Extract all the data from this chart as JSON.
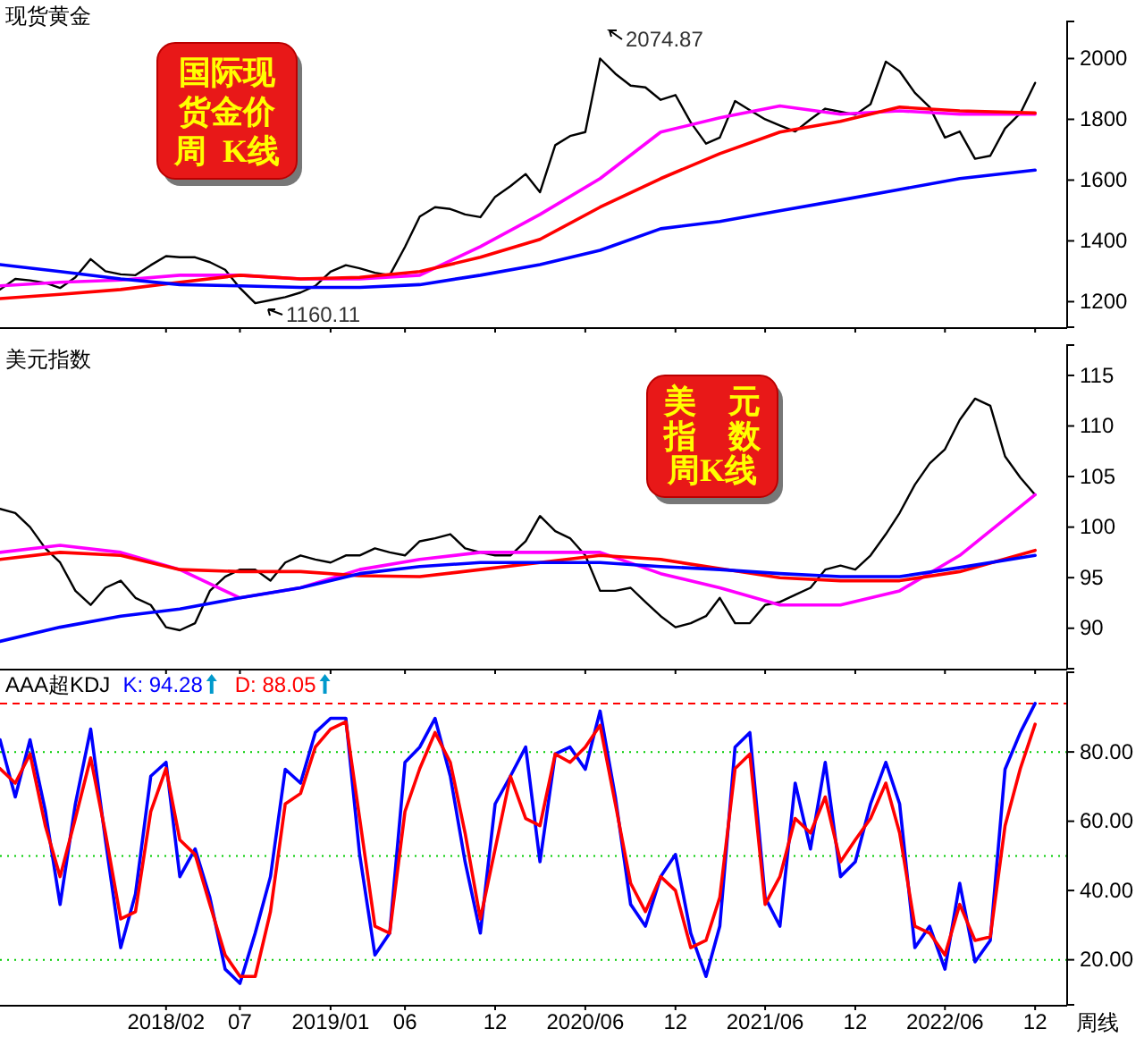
{
  "chart_data": [
    {
      "type": "line",
      "title": "现货黄金",
      "x": [
        "2017-03",
        "2017-04",
        "2017-05",
        "2017-06",
        "2017-07",
        "2017-08",
        "2017-09",
        "2017-10",
        "2017-11",
        "2017-12",
        "2018-01",
        "2018-02",
        "2018-03",
        "2018-04",
        "2018-05",
        "2018-06",
        "2018-07",
        "2018-08",
        "2018-09",
        "2018-10",
        "2018-11",
        "2018-12",
        "2019-01",
        "2019-02",
        "2019-03",
        "2019-04",
        "2019-05",
        "2019-06",
        "2019-07",
        "2019-08",
        "2019-09",
        "2019-10",
        "2019-11",
        "2019-12",
        "2020-01",
        "2020-02",
        "2020-03",
        "2020-04",
        "2020-05",
        "2020-06",
        "2020-07",
        "2020-08",
        "2020-09",
        "2020-10",
        "2020-11",
        "2020-12",
        "2021-01",
        "2021-02",
        "2021-03",
        "2021-04",
        "2021-05",
        "2021-06",
        "2021-07",
        "2021-08",
        "2021-09",
        "2021-10",
        "2021-11",
        "2021-12",
        "2022-01",
        "2022-02",
        "2022-03",
        "2022-04",
        "2022-05",
        "2022-06",
        "2022-07",
        "2022-08",
        "2022-09",
        "2022-10",
        "2022-11",
        "2022-12"
      ],
      "series": [
        {
          "color": "#000000",
          "values": [
            1240,
            1275,
            1270,
            1262,
            1245,
            1280,
            1340,
            1300,
            1290,
            1287,
            1320,
            1350,
            1346,
            1346,
            1330,
            1305,
            1245,
            1195,
            1205,
            1215,
            1230,
            1252,
            1299,
            1320,
            1310,
            1295,
            1287,
            1380,
            1480,
            1511,
            1505,
            1487,
            1478,
            1545,
            1580,
            1620,
            1560,
            1715,
            1745,
            1758,
            2000,
            1950,
            1911,
            1905,
            1864,
            1880,
            1790,
            1720,
            1740,
            1860,
            1830,
            1800,
            1780,
            1760,
            1800,
            1835,
            1825,
            1815,
            1850,
            1990,
            1958,
            1887,
            1840,
            1740,
            1760,
            1670,
            1680,
            1770,
            1820,
            1920
          ]
        },
        {
          "color": "#ff00ff",
          "x": [
            "2017-03",
            "2017-07",
            "2017-11",
            "2018-03",
            "2018-07",
            "2018-11",
            "2019-03",
            "2019-07",
            "2019-11",
            "2020-03",
            "2020-07",
            "2020-11",
            "2021-03",
            "2021-07",
            "2021-11",
            "2022-03",
            "2022-07",
            "2022-12"
          ],
          "values": [
            1252,
            1264,
            1271,
            1287,
            1287,
            1275,
            1275,
            1287,
            1381,
            1487,
            1605,
            1758,
            1805,
            1844,
            1817,
            1828,
            1817,
            1817
          ]
        },
        {
          "color": "#ff0000",
          "x": [
            "2017-03",
            "2017-07",
            "2017-11",
            "2018-03",
            "2018-07",
            "2018-11",
            "2019-03",
            "2019-07",
            "2019-11",
            "2020-03",
            "2020-07",
            "2020-11",
            "2021-03",
            "2021-07",
            "2021-11",
            "2022-03",
            "2022-07",
            "2022-12"
          ],
          "values": [
            1210,
            1224,
            1240,
            1264,
            1287,
            1275,
            1280,
            1299,
            1346,
            1405,
            1511,
            1605,
            1687,
            1758,
            1793,
            1840,
            1828,
            1821
          ]
        },
        {
          "color": "#0000ff",
          "x": [
            "2017-03",
            "2017-07",
            "2017-11",
            "2018-03",
            "2018-07",
            "2018-11",
            "2019-03",
            "2019-07",
            "2019-11",
            "2020-03",
            "2020-07",
            "2020-11",
            "2021-03",
            "2021-07",
            "2021-11",
            "2022-03",
            "2022-07",
            "2022-12"
          ],
          "values": [
            1322,
            1299,
            1275,
            1256,
            1252,
            1247,
            1247,
            1256,
            1287,
            1322,
            1369,
            1440,
            1464,
            1499,
            1534,
            1569,
            1605,
            1633
          ]
        }
      ],
      "xlim": [
        "2017-03-01",
        "2023-02-04"
      ],
      "xticks": [
        {
          "value": "2018-02",
          "label": null
        },
        {
          "value": "2018-07",
          "label": null
        },
        {
          "value": "2019-01",
          "label": null
        },
        {
          "value": "2019-06",
          "label": null
        },
        {
          "value": "2019-12",
          "label": null
        },
        {
          "value": "2020-06",
          "label": null
        },
        {
          "value": "2020-12",
          "label": null
        },
        {
          "value": "2021-06",
          "label": null
        },
        {
          "value": "2021-12",
          "label": null
        },
        {
          "value": "2022-06",
          "label": null
        },
        {
          "value": "2022-12",
          "label": null
        }
      ],
      "ylim": [
        1116,
        2122
      ],
      "yticks": [
        1200,
        1400,
        1600,
        1800,
        2000
      ],
      "tick_labels": "y",
      "annotations": [
        "国际现",
        "货金价",
        "周  K线",
        "2074.87",
        "1160.11"
      ]
    },
    {
      "type": "line",
      "title": "美元指数",
      "x": [
        "2017-03",
        "2017-04",
        "2017-05",
        "2017-06",
        "2017-07",
        "2017-08",
        "2017-09",
        "2017-10",
        "2017-11",
        "2017-12",
        "2018-01",
        "2018-02",
        "2018-03",
        "2018-04",
        "2018-05",
        "2018-06",
        "2018-07",
        "2018-08",
        "2018-09",
        "2018-10",
        "2018-11",
        "2018-12",
        "2019-01",
        "2019-02",
        "2019-03",
        "2019-04",
        "2019-05",
        "2019-06",
        "2019-07",
        "2019-08",
        "2019-09",
        "2019-10",
        "2019-11",
        "2019-12",
        "2020-01",
        "2020-02",
        "2020-03",
        "2020-04",
        "2020-05",
        "2020-06",
        "2020-07",
        "2020-08",
        "2020-09",
        "2020-10",
        "2020-11",
        "2020-12",
        "2021-01",
        "2021-02",
        "2021-03",
        "2021-04",
        "2021-05",
        "2021-06",
        "2021-07",
        "2021-08",
        "2021-09",
        "2021-10",
        "2021-11",
        "2021-12",
        "2022-01",
        "2022-02",
        "2022-03",
        "2022-04",
        "2022-05",
        "2022-06",
        "2022-07",
        "2022-08",
        "2022-09",
        "2022-10",
        "2022-11",
        "2022-12"
      ],
      "series": [
        {
          "color": "#000000",
          "values": [
            101.8,
            101.4,
            100,
            97.9,
            96.5,
            93.7,
            92.3,
            94,
            94.7,
            93,
            92.3,
            90.1,
            89.8,
            90.5,
            93.7,
            95.1,
            95.8,
            95.8,
            94.7,
            96.5,
            97.2,
            96.8,
            96.5,
            97.2,
            97.2,
            97.9,
            97.5,
            97.2,
            98.6,
            98.9,
            99.3,
            97.9,
            97.5,
            97.2,
            97.2,
            98.6,
            101.1,
            99.6,
            98.9,
            97.2,
            93.7,
            93.7,
            94,
            92.6,
            91.2,
            90.1,
            90.5,
            91.2,
            93,
            90.5,
            90.5,
            92.3,
            92.6,
            93.3,
            94,
            95.8,
            96.2,
            95.8,
            97.2,
            99.3,
            101.4,
            104.2,
            106.3,
            107.7,
            110.6,
            112.7,
            112,
            107,
            104.9,
            103.2
          ]
        },
        {
          "color": "#ff00ff",
          "x": [
            "2017-03",
            "2017-07",
            "2017-11",
            "2018-03",
            "2018-07",
            "2018-11",
            "2019-03",
            "2019-07",
            "2019-11",
            "2020-03",
            "2020-07",
            "2020-11",
            "2021-03",
            "2021-07",
            "2021-11",
            "2022-03",
            "2022-07",
            "2022-12"
          ],
          "values": [
            97.5,
            98.2,
            97.5,
            95.8,
            93,
            94,
            95.8,
            96.8,
            97.5,
            97.5,
            97.5,
            95.4,
            94,
            92.3,
            92.3,
            93.7,
            97.2,
            103.2
          ]
        },
        {
          "color": "#ff0000",
          "x": [
            "2017-03",
            "2017-07",
            "2017-11",
            "2018-03",
            "2018-07",
            "2018-11",
            "2019-03",
            "2019-07",
            "2019-11",
            "2020-03",
            "2020-07",
            "2020-11",
            "2021-03",
            "2021-07",
            "2021-11",
            "2022-03",
            "2022-07",
            "2022-12"
          ],
          "values": [
            96.8,
            97.5,
            97.2,
            95.8,
            95.6,
            95.6,
            95.2,
            95.1,
            95.8,
            96.5,
            97.2,
            96.8,
            95.9,
            95,
            94.7,
            94.7,
            95.6,
            97.7
          ]
        },
        {
          "color": "#0000ff",
          "x": [
            "2017-03",
            "2017-07",
            "2017-11",
            "2018-03",
            "2018-07",
            "2018-11",
            "2019-03",
            "2019-07",
            "2019-11",
            "2020-03",
            "2020-07",
            "2020-11",
            "2021-03",
            "2021-07",
            "2021-11",
            "2022-03",
            "2022-07",
            "2022-12"
          ],
          "values": [
            88.7,
            90.1,
            91.2,
            91.9,
            93,
            94,
            95.4,
            96.1,
            96.5,
            96.5,
            96.5,
            96.1,
            95.8,
            95.4,
            95.1,
            95.1,
            96,
            97.2
          ]
        }
      ],
      "xlim": [
        "2017-03-01",
        "2023-02-04"
      ],
      "xticks": [
        {
          "value": "2018-02",
          "label": null
        },
        {
          "value": "2018-07",
          "label": null
        },
        {
          "value": "2019-01",
          "label": null
        },
        {
          "value": "2019-06",
          "label": null
        },
        {
          "value": "2019-12",
          "label": null
        },
        {
          "value": "2020-06",
          "label": null
        },
        {
          "value": "2020-12",
          "label": null
        },
        {
          "value": "2021-06",
          "label": null
        },
        {
          "value": "2021-12",
          "label": null
        },
        {
          "value": "2022-06",
          "label": null
        },
        {
          "value": "2022-12",
          "label": null
        }
      ],
      "ylim": [
        86,
        118
      ],
      "yticks": [
        90,
        95,
        100,
        105,
        110,
        115
      ],
      "tick_labels": "y",
      "annotations": [
        "美　元",
        "指　数",
        "周K线"
      ]
    },
    {
      "type": "line",
      "title": "AAA超KDJ",
      "legend": "top left",
      "x": [
        "2017-03",
        "2017-04",
        "2017-05",
        "2017-06",
        "2017-07",
        "2017-08",
        "2017-09",
        "2017-10",
        "2017-11",
        "2017-12",
        "2018-01",
        "2018-02",
        "2018-03",
        "2018-04",
        "2018-05",
        "2018-06",
        "2018-07",
        "2018-08",
        "2018-09",
        "2018-10",
        "2018-11",
        "2018-12",
        "2019-01",
        "2019-02",
        "2019-03",
        "2019-04",
        "2019-05",
        "2019-06",
        "2019-07",
        "2019-08",
        "2019-09",
        "2019-10",
        "2019-11",
        "2019-12",
        "2020-01",
        "2020-02",
        "2020-03",
        "2020-04",
        "2020-05",
        "2020-06",
        "2020-07",
        "2020-08",
        "2020-09",
        "2020-10",
        "2020-11",
        "2020-12",
        "2021-01",
        "2021-02",
        "2021-03",
        "2021-04",
        "2021-05",
        "2021-06",
        "2021-07",
        "2021-08",
        "2021-09",
        "2021-10",
        "2021-11",
        "2021-12",
        "2022-01",
        "2022-02",
        "2022-03",
        "2022-04",
        "2022-05",
        "2022-06",
        "2022-07",
        "2022-08",
        "2022-09",
        "2022-10",
        "2022-11",
        "2022-12"
      ],
      "series": [
        {
          "name": "K: 94.28",
          "color": "#0000ff",
          "values": [
            83.5,
            67,
            83.5,
            63,
            36,
            65,
            86.6,
            54.6,
            23.5,
            39,
            73,
            77,
            44,
            52,
            38,
            17.3,
            13.2,
            27.7,
            44,
            75,
            71,
            85.6,
            89.7,
            89.7,
            50.4,
            21.4,
            27.7,
            77,
            81.4,
            89.7,
            73,
            48.3,
            27.7,
            65,
            73,
            81.4,
            48.3,
            79.4,
            81.4,
            75,
            91.8,
            67,
            36,
            29.7,
            44,
            50.4,
            27.7,
            15.2,
            29.7,
            81.4,
            85.6,
            38,
            29.7,
            71,
            52,
            77,
            44,
            48.3,
            65,
            77,
            65,
            23.5,
            29.7,
            17.3,
            42.1,
            19.4,
            25.6,
            75,
            85.6,
            94
          ]
        },
        {
          "name": "D: 88.05",
          "color": "#ff0000",
          "values": [
            75.2,
            71,
            79.4,
            58.7,
            44,
            60.8,
            78.3,
            56.6,
            31.8,
            33.9,
            62.8,
            75.2,
            54.6,
            50.4,
            36,
            21.4,
            15.2,
            15.2,
            33.9,
            65,
            68,
            81.4,
            86.6,
            88.7,
            60.8,
            29.7,
            27.7,
            62.8,
            75.2,
            85.6,
            77,
            56.6,
            31.8,
            52,
            73,
            60.8,
            58.7,
            79.4,
            77,
            81.4,
            87.7,
            65,
            42.1,
            33.9,
            44,
            40,
            23.5,
            25.6,
            38,
            75.2,
            79.4,
            36,
            44,
            60.8,
            56.6,
            67,
            48.3,
            54.6,
            60.8,
            71,
            56.6,
            29.7,
            27.7,
            21.4,
            36,
            25.6,
            26.6,
            58.7,
            75.2,
            88
          ]
        }
      ],
      "xlim": [
        "2017-03-01",
        "2023-02-04"
      ],
      "xticks": [
        {
          "value": "2018-02",
          "label": "2018/02"
        },
        {
          "value": "2018-07",
          "label": "07"
        },
        {
          "value": "2019-01",
          "label": "2019/01"
        },
        {
          "value": "2019-06",
          "label": "06"
        },
        {
          "value": "2019-12",
          "label": "12"
        },
        {
          "value": "2020-06",
          "label": "2020/06"
        },
        {
          "value": "2020-12",
          "label": "12"
        },
        {
          "value": "2021-06",
          "label": "2021/06"
        },
        {
          "value": "2021-12",
          "label": "12"
        },
        {
          "value": "2022-06",
          "label": "2022/06"
        },
        {
          "value": "2022-12",
          "label": "12"
        }
      ],
      "ylim": [
        7,
        103
      ],
      "yticks": [
        {
          "value": 20,
          "label": "20.00"
        },
        {
          "value": 40,
          "label": "40.00"
        },
        {
          "value": 60,
          "label": "60.00"
        },
        {
          "value": 80,
          "label": "80.00"
        }
      ],
      "ref_lines": [
        {
          "axis": "y",
          "value": 20,
          "color": "#00cc00",
          "line_style": "dotted"
        },
        {
          "axis": "y",
          "value": 50,
          "color": "#00cc00",
          "line_style": "dotted"
        },
        {
          "axis": "y",
          "value": 80,
          "color": "#00cc00",
          "line_style": "dotted"
        },
        {
          "axis": "y",
          "value": 94,
          "color": "#ff0000",
          "line_style": "dashed"
        }
      ],
      "annotations": [
        "周线"
      ]
    }
  ]
}
